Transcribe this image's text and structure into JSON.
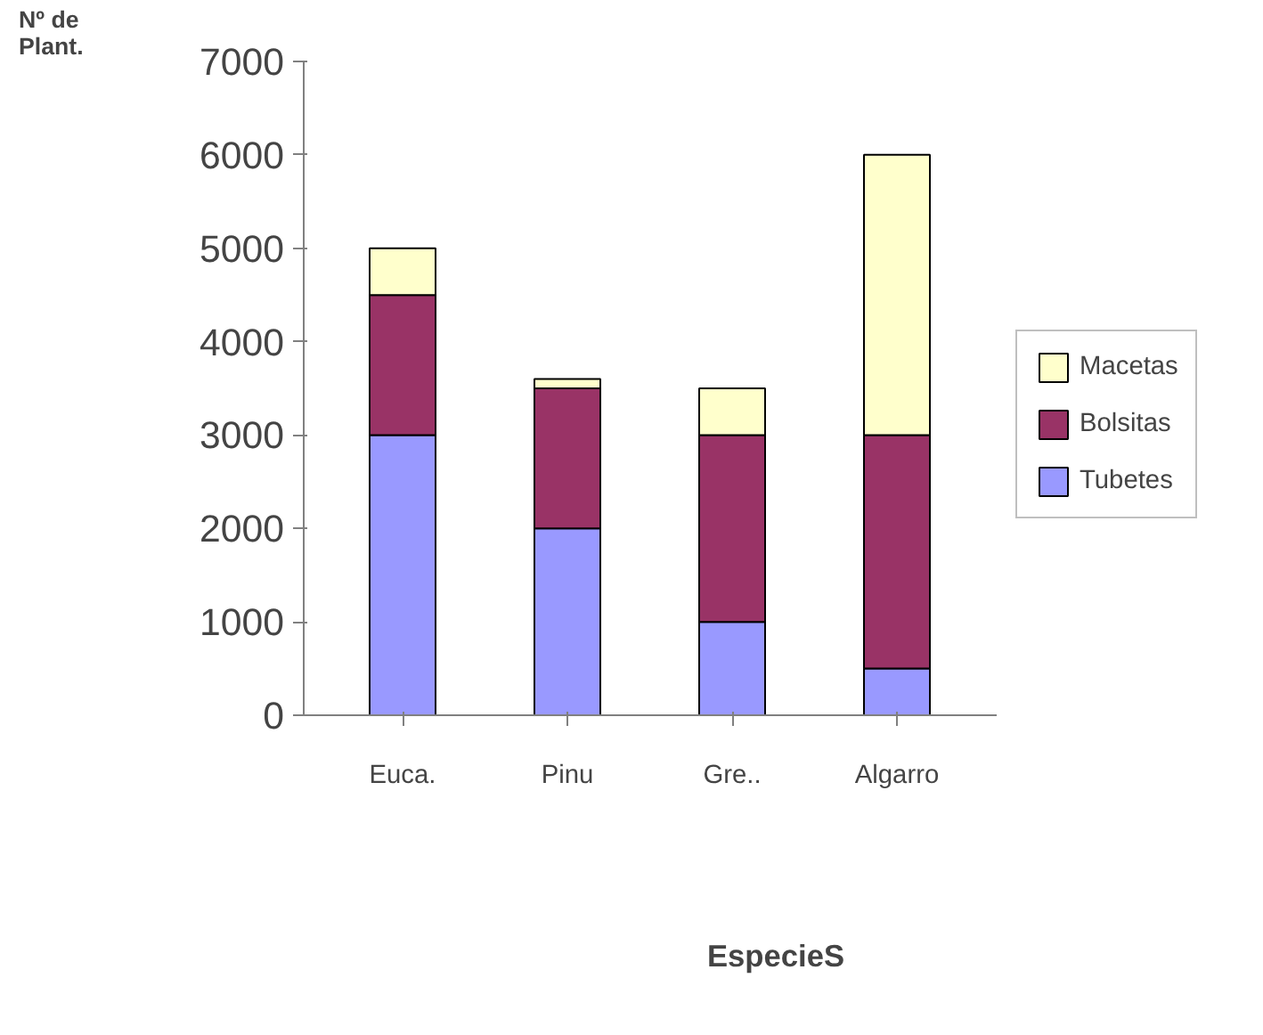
{
  "chart_data": {
    "type": "bar",
    "stacked": true,
    "xlabel": "EspecieS",
    "ylabel": "Nº de\nPlant.",
    "categories": [
      "Euca.",
      "Pinu",
      "Gre..",
      "Algarro"
    ],
    "series": [
      {
        "name": "Tubetes",
        "color": "#9999ff",
        "values": [
          3000,
          2000,
          1000,
          500
        ]
      },
      {
        "name": "Bolsitas",
        "color": "#993366",
        "values": [
          1500,
          1500,
          2000,
          2500
        ]
      },
      {
        "name": "Macetas",
        "color": "#ffffcc",
        "values": [
          500,
          100,
          500,
          3000
        ]
      }
    ],
    "ylim": [
      0,
      7000
    ],
    "yticks": [
      0,
      1000,
      2000,
      3000,
      4000,
      5000,
      6000,
      7000
    ],
    "grid": false,
    "legend": "right"
  }
}
